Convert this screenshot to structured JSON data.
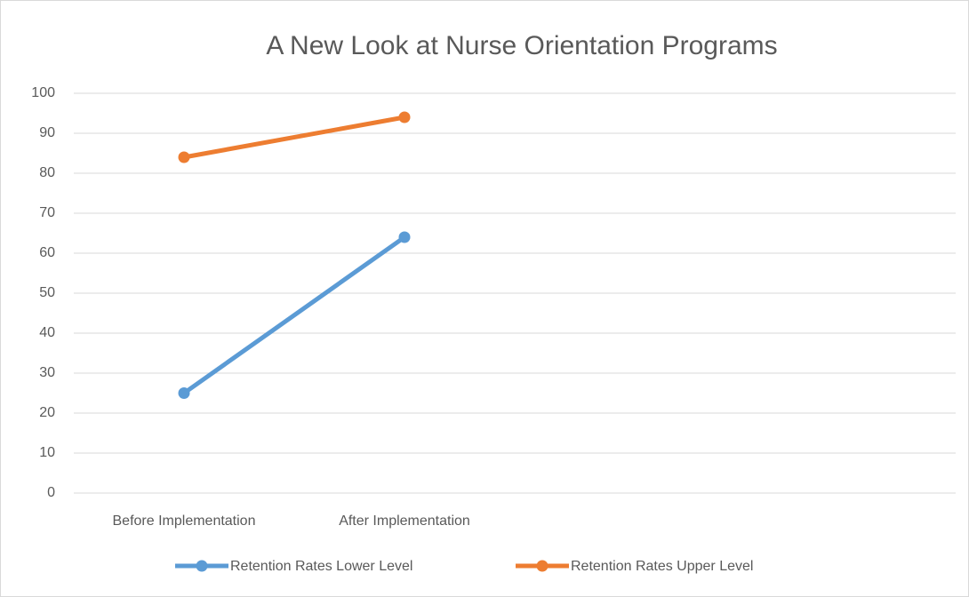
{
  "chart_data": {
    "type": "line",
    "title": "A New Look at Nurse Orientation Programs",
    "categories": [
      "Before Implementation",
      "After Implementation",
      null,
      null
    ],
    "series": [
      {
        "name": "Retention Rates Lower Level",
        "color": "#5b9bd5",
        "values": [
          25,
          64,
          null,
          null
        ]
      },
      {
        "name": "Retention Rates Upper Level",
        "color": "#ed7d31",
        "values": [
          84,
          94,
          null,
          null
        ]
      }
    ],
    "ylim": [
      0,
      100
    ],
    "yticks": [
      0,
      10,
      20,
      30,
      40,
      50,
      60,
      70,
      80,
      90,
      100
    ],
    "grid": true,
    "legend": "bottom"
  }
}
